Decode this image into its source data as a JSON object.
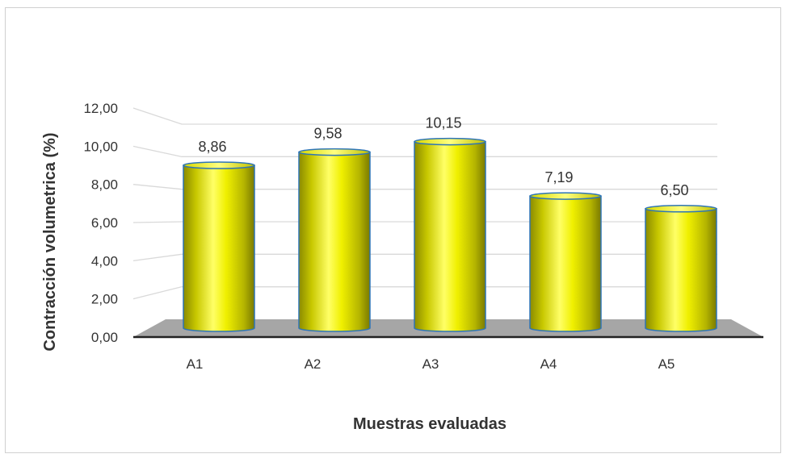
{
  "chart_data": {
    "type": "bar",
    "categories": [
      "A1",
      "A2",
      "A3",
      "A4",
      "A5"
    ],
    "values": [
      8.86,
      9.58,
      10.15,
      7.19,
      6.5
    ],
    "value_labels": [
      "8,86",
      "9,58",
      "10,15",
      "7,19",
      "6,50"
    ],
    "title": "",
    "xlabel": "Muestras evaluadas",
    "ylabel": "Contracción volumetrica (%)",
    "ylim": [
      0,
      12
    ],
    "yticks": [
      "0,00",
      "2,00",
      "4,00",
      "6,00",
      "8,00",
      "10,00",
      "12,00"
    ],
    "grid": true,
    "legend": "none",
    "colors": {
      "bar_fill": "#e6e600",
      "bar_edge": "#2e75b6",
      "floor": "#a6a6a6",
      "gridline": "#d9d9d9"
    }
  }
}
